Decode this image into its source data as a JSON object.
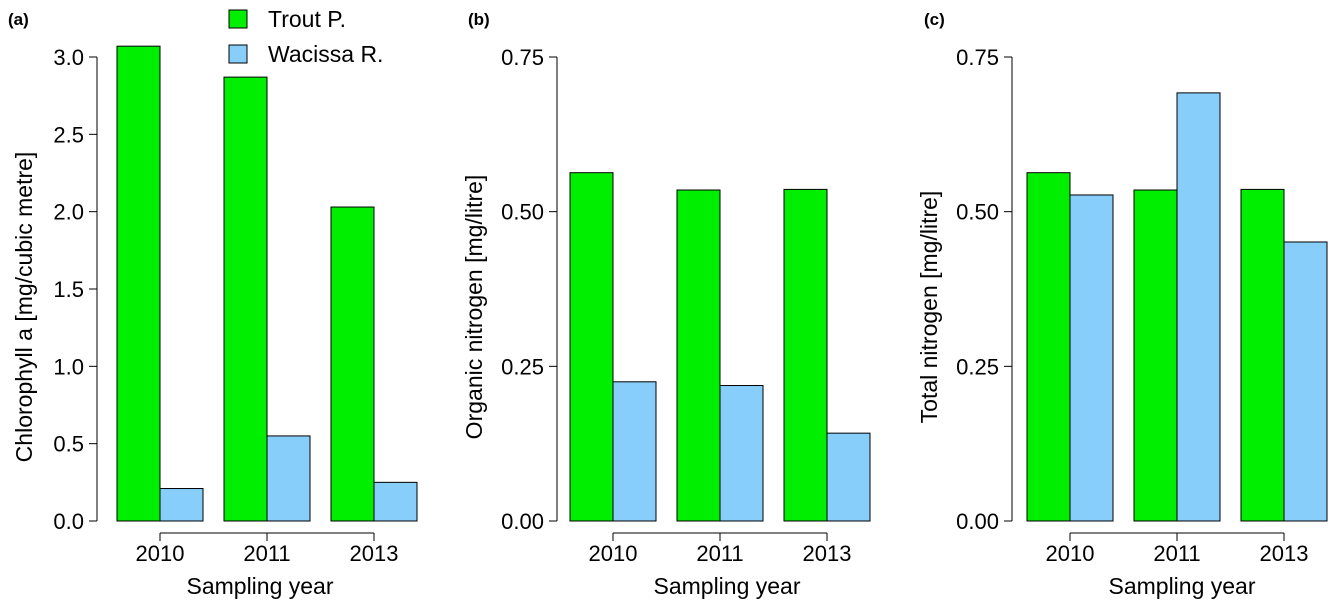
{
  "chart_data": [
    {
      "type": "bar",
      "panel_label": "(a)",
      "categories": [
        "2010",
        "2011",
        "2013"
      ],
      "series": [
        {
          "name": "Trout P.",
          "values": [
            3.07,
            2.87,
            2.03
          ]
        },
        {
          "name": "Wacissa R.",
          "values": [
            0.21,
            0.55,
            0.25
          ]
        }
      ],
      "xlabel": "Sampling year",
      "ylabel": "Chlorophyll a [mg/cubic metre]",
      "ylim": [
        0,
        3.0
      ],
      "yticks": [
        "0.0",
        "0.5",
        "1.0",
        "1.5",
        "2.0",
        "2.5",
        "3.0"
      ],
      "legend_position": "top"
    },
    {
      "type": "bar",
      "panel_label": "(b)",
      "categories": [
        "2010",
        "2011",
        "2013"
      ],
      "series": [
        {
          "name": "Trout P.",
          "values": [
            0.563,
            0.535,
            0.536
          ]
        },
        {
          "name": "Wacissa R.",
          "values": [
            0.225,
            0.219,
            0.142
          ]
        }
      ],
      "xlabel": "Sampling year",
      "ylabel": "Organic nitrogen [mg/litre]",
      "ylim": [
        0,
        0.75
      ],
      "yticks": [
        "0.00",
        "0.25",
        "0.50",
        "0.75"
      ]
    },
    {
      "type": "bar",
      "panel_label": "(c)",
      "categories": [
        "2010",
        "2011",
        "2013"
      ],
      "series": [
        {
          "name": "Trout P.",
          "values": [
            0.563,
            0.535,
            0.536
          ]
        },
        {
          "name": "Wacissa R.",
          "values": [
            0.527,
            0.692,
            0.451
          ]
        }
      ],
      "xlabel": "Sampling year",
      "ylabel": "Total nitrogen [mg/litre]",
      "ylim": [
        0,
        0.75
      ],
      "yticks": [
        "0.00",
        "0.25",
        "0.50",
        "0.75"
      ]
    }
  ],
  "legend": {
    "items": [
      {
        "label": "Trout P.",
        "color": "#00ee00"
      },
      {
        "label": "Wacissa R.",
        "color": "#87cefa"
      }
    ]
  },
  "colors": {
    "trout": "#00ee00",
    "wacissa": "#87cefa",
    "outline": "#000000"
  }
}
